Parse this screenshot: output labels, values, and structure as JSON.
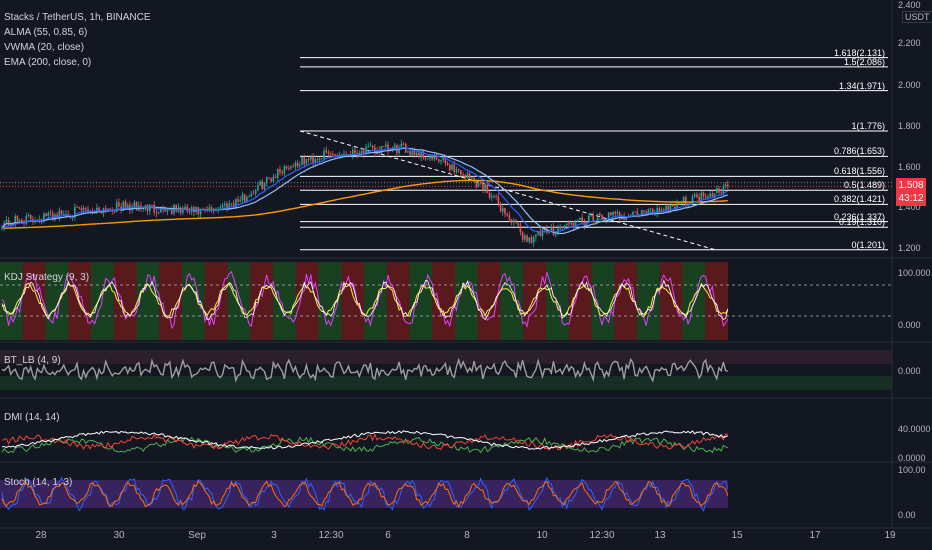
{
  "symbol": "Stacks / TetherUS, 1h, BINANCE",
  "indicators": [
    "ALMA (55, 0.85, 6)",
    "VWMA (20, close)",
    "EMA (200, close, 0)"
  ],
  "panes": {
    "kdj": {
      "title": "KDJ Strategy (9, 3)",
      "ticks": [
        "100.000",
        "0.000"
      ]
    },
    "bt": {
      "title": "BT_LB (4, 9)",
      "ticks": [
        "0.000"
      ]
    },
    "dmi": {
      "title": "DMI (14, 14)",
      "ticks": [
        "40.0000",
        "0.0000"
      ]
    },
    "stoch": {
      "title": "Stoch (14, 1, 3)",
      "ticks": [
        "100.00",
        "0.00"
      ]
    }
  },
  "price_axis": {
    "unit": "USDT",
    "ticks": [
      "2.400",
      "2.200",
      "2.000",
      "1.800",
      "1.600",
      "1.400",
      "1.200"
    ]
  },
  "current_price": {
    "value": "1.508",
    "countdown": "43:12",
    "color": "#f23645"
  },
  "x_axis": {
    "labels": [
      "28",
      "30",
      "Sep",
      "3",
      "12:30",
      "6",
      "8",
      "10",
      "12:30",
      "13",
      "15",
      "17",
      "19"
    ]
  },
  "colors": {
    "background": "#131722",
    "up": "#26a69a",
    "down": "#ef5350",
    "alma": "#2962ff",
    "vwma": "#90bff9",
    "ema": "#ff9800",
    "kdj_bg_green": "#1b5e20",
    "kdj_bg_red": "#8b1a1a",
    "stoch_bg": "#4a2a78"
  },
  "chart_data": {
    "type": "line",
    "title": "Stacks / TetherUS, 1h, BINANCE",
    "ylim": [
      1.1,
      2.4
    ],
    "price_series": {
      "name": "Stacks / TetherUS",
      "x": [
        "27",
        "28",
        "29",
        "30",
        "31",
        "Sep",
        "2",
        "3",
        "4",
        "5",
        "6",
        "7",
        "8",
        "9",
        "10",
        "11",
        "12",
        "13",
        "14"
      ],
      "values": [
        1.33,
        1.36,
        1.39,
        1.41,
        1.4,
        1.38,
        1.45,
        1.6,
        1.66,
        1.68,
        1.69,
        1.62,
        1.5,
        1.25,
        1.32,
        1.36,
        1.38,
        1.44,
        1.508
      ]
    },
    "fibonacci": {
      "levels": [
        {
          "label": "1.618(2.131)",
          "value": 2.131
        },
        {
          "label": "1.5(2.086)",
          "value": 2.086
        },
        {
          "label": "1.34(1.971)",
          "value": 1.971
        },
        {
          "label": "1(1.776)",
          "value": 1.776
        },
        {
          "label": "0.786(1.653)",
          "value": 1.653
        },
        {
          "label": "0.618(1.556)",
          "value": 1.556
        },
        {
          "label": "0.5(1.489)",
          "value": 1.489
        },
        {
          "label": "0.382(1.421)",
          "value": 1.421
        },
        {
          "label": "0.236(1.337)",
          "value": 1.337
        },
        {
          "label": "0.19(1.310)",
          "value": 1.31
        },
        {
          "label": "0(1.201)",
          "value": 1.201
        }
      ]
    }
  }
}
